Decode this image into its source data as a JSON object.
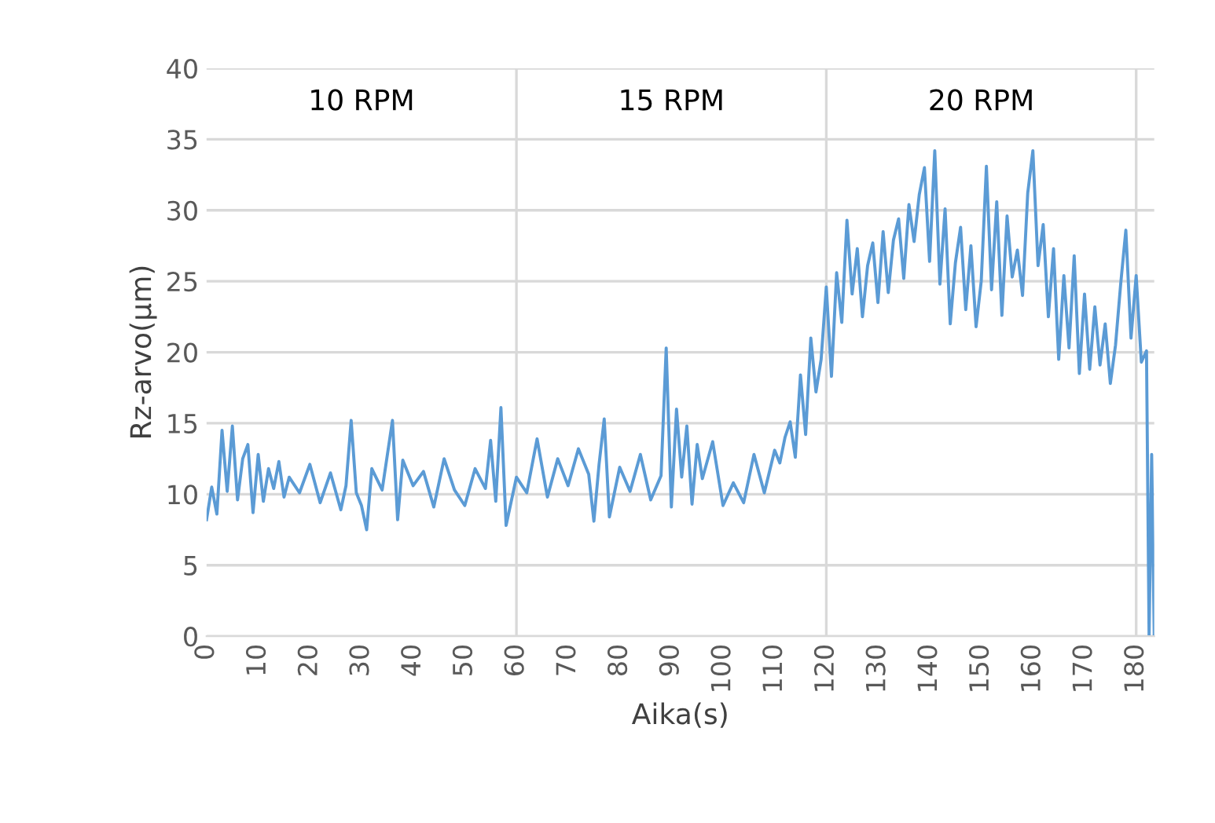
{
  "chart_data": {
    "type": "line",
    "xlabel": "Aika(s)",
    "ylabel": "Rz-arvo(µm)",
    "x": [
      0,
      1,
      2,
      3,
      4,
      5,
      6,
      7,
      8,
      9,
      10,
      11,
      12,
      13,
      14,
      15,
      16,
      18,
      20,
      22,
      24,
      26,
      27,
      28,
      29,
      30,
      31,
      32,
      34,
      36,
      37,
      38,
      40,
      42,
      44,
      46,
      48,
      50,
      52,
      54,
      55,
      56,
      57,
      58,
      60,
      62,
      64,
      66,
      68,
      70,
      72,
      74,
      75,
      76,
      77,
      78,
      80,
      82,
      84,
      86,
      88,
      89,
      90,
      91,
      92,
      93,
      94,
      95,
      96,
      98,
      100,
      102,
      104,
      106,
      108,
      110,
      111,
      112,
      113,
      114,
      115,
      116,
      117,
      118,
      119,
      120,
      121,
      122,
      123,
      124,
      125,
      126,
      127,
      128,
      129,
      130,
      131,
      132,
      133,
      134,
      135,
      136,
      137,
      138,
      139,
      140,
      141,
      142,
      143,
      144,
      145,
      146,
      147,
      148,
      149,
      150,
      151,
      152,
      153,
      154,
      155,
      156,
      157,
      158,
      159,
      160,
      161,
      162,
      163,
      164,
      165,
      166,
      167,
      168,
      169,
      170,
      171,
      172,
      173,
      174,
      175,
      176,
      177,
      178,
      179,
      180,
      181,
      182,
      182.5,
      183,
      183.5
    ],
    "series": [
      {
        "color": "#5b9bd5",
        "values": [
          8.2,
          10.5,
          8.6,
          14.5,
          10.2,
          14.8,
          9.6,
          12.5,
          13.5,
          8.7,
          12.8,
          9.5,
          11.8,
          10.4,
          12.3,
          9.8,
          11.2,
          10.1,
          12.1,
          9.4,
          11.5,
          8.9,
          10.6,
          15.2,
          10.1,
          9.2,
          7.5,
          11.8,
          10.3,
          15.2,
          8.2,
          12.4,
          10.6,
          11.6,
          9.1,
          12.5,
          10.3,
          9.2,
          11.8,
          10.4,
          13.8,
          9.5,
          16.1,
          7.8,
          11.2,
          10.1,
          13.9,
          9.8,
          12.5,
          10.6,
          13.2,
          11.4,
          8.1,
          12.1,
          15.3,
          8.4,
          11.9,
          10.2,
          12.8,
          9.6,
          11.3,
          20.3,
          9.1,
          16.0,
          11.2,
          14.8,
          9.3,
          13.5,
          11.1,
          13.7,
          9.2,
          10.8,
          9.4,
          12.8,
          10.1,
          13.1,
          12.2,
          14.0,
          15.1,
          12.6,
          18.4,
          14.2,
          21.0,
          17.2,
          19.5,
          24.6,
          18.3,
          25.6,
          22.1,
          29.3,
          24.1,
          27.3,
          22.5,
          26.1,
          27.7,
          23.5,
          28.5,
          24.2,
          27.9,
          29.4,
          25.2,
          30.4,
          27.8,
          31.1,
          33.0,
          26.4,
          34.2,
          24.8,
          30.1,
          22.0,
          26.3,
          28.8,
          23.0,
          27.5,
          21.8,
          25.0,
          33.1,
          24.4,
          30.6,
          22.6,
          29.6,
          25.3,
          27.2,
          24.0,
          31.2,
          34.2,
          26.1,
          29.0,
          22.5,
          27.3,
          19.5,
          25.4,
          20.3,
          26.8,
          18.5,
          24.1,
          18.8,
          23.2,
          19.1,
          22.0,
          17.8,
          20.5,
          24.8,
          28.6,
          21.0,
          25.4,
          19.3,
          20.1,
          0,
          12.8,
          0
        ]
      }
    ],
    "xlim": [
      0,
      183.5
    ],
    "xticks": [
      0,
      10,
      20,
      30,
      40,
      50,
      60,
      70,
      80,
      90,
      100,
      110,
      120,
      130,
      140,
      150,
      160,
      170,
      180
    ],
    "ylim": [
      0,
      40
    ],
    "yticks": [
      0,
      5,
      10,
      15,
      20,
      25,
      30,
      35,
      40
    ],
    "grid": "y",
    "legend": false,
    "ref_lines": [
      {
        "axis": "x",
        "value": 60,
        "color": "#d9d9d9"
      },
      {
        "axis": "x",
        "value": 120,
        "color": "#d9d9d9"
      },
      {
        "axis": "x",
        "value": 180,
        "color": "#d9d9d9"
      }
    ],
    "annotations": [
      "10 RPM",
      "15 RPM",
      "20 RPM"
    ]
  }
}
